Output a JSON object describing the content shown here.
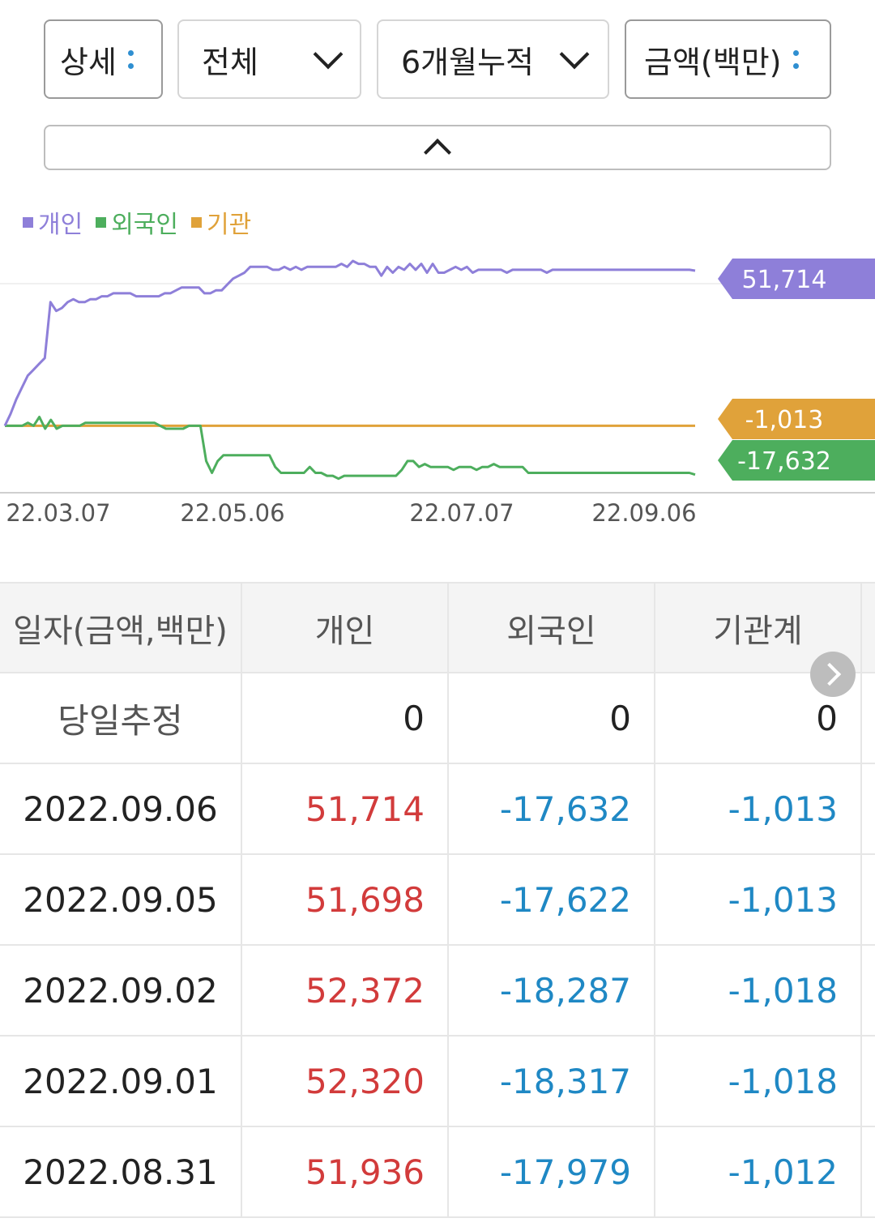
{
  "filters": {
    "detail": "상세",
    "scope": "전체",
    "period": "6개월누적",
    "unit": "금액(백만)"
  },
  "legend": [
    {
      "label": "개인",
      "color": "#8e7fd9"
    },
    {
      "label": "외국인",
      "color": "#4dae5d"
    },
    {
      "label": "기관",
      "color": "#e0a23a"
    }
  ],
  "chart_data": {
    "type": "line",
    "x_tick_labels": [
      "22.03.07",
      "22.05.06",
      "22.07.07",
      "22.09.06"
    ],
    "series": [
      {
        "name": "개인",
        "color": "#8e7fd9",
        "last_label": "51,714",
        "values": [
          -1,
          3,
          8,
          12,
          16,
          18,
          20,
          22,
          41,
          38,
          39,
          41,
          42,
          41,
          41,
          42,
          42,
          43,
          43,
          44,
          44,
          44,
          44,
          43,
          43,
          43,
          43,
          43,
          44,
          44,
          45,
          46,
          46,
          46,
          46,
          44,
          44,
          45,
          45,
          47,
          49,
          50,
          51,
          53,
          53,
          53,
          53,
          52,
          52,
          53,
          52,
          53,
          52,
          53,
          53,
          53,
          53,
          53,
          53,
          54,
          53,
          55,
          54,
          54,
          53,
          53,
          50,
          53,
          51,
          53,
          52,
          54,
          52,
          54,
          51,
          54,
          51,
          51,
          52,
          53,
          52,
          53,
          51,
          52,
          52,
          52,
          52,
          52,
          51,
          52,
          52,
          52,
          52,
          52,
          52,
          51,
          52,
          52,
          52,
          52,
          52,
          52,
          52,
          52,
          52,
          52,
          52,
          52,
          52,
          52,
          52,
          52,
          52,
          52,
          52,
          52,
          52,
          52,
          52,
          52,
          52,
          51.7
        ]
      },
      {
        "name": "외국인",
        "color": "#4dae5d",
        "last_label": "-17,632",
        "values": [
          -1,
          -1,
          -1,
          -1,
          0,
          -1,
          2,
          -2,
          1,
          -2,
          -1,
          -1,
          -1,
          -1,
          0,
          0,
          0,
          0,
          0,
          0,
          0,
          0,
          0,
          0,
          0,
          0,
          0,
          -1,
          -2,
          -2,
          -2,
          -2,
          -1,
          -1,
          -1,
          -13,
          -17,
          -13,
          -11,
          -11,
          -11,
          -11,
          -11,
          -11,
          -11,
          -11,
          -11,
          -15,
          -17,
          -17,
          -17,
          -17,
          -17,
          -15,
          -17,
          -17,
          -18,
          -18,
          -19,
          -18,
          -18,
          -18,
          -18,
          -18,
          -18,
          -18,
          -18,
          -18,
          -18,
          -16,
          -13,
          -13,
          -15,
          -14,
          -15,
          -15,
          -15,
          -15,
          -16,
          -15,
          -15,
          -15,
          -16,
          -15,
          -15,
          -14,
          -15,
          -15,
          -15,
          -15,
          -15,
          -17,
          -17,
          -17,
          -17,
          -17,
          -17,
          -17,
          -17,
          -17,
          -17,
          -17,
          -17,
          -17,
          -17,
          -17,
          -17,
          -17,
          -17,
          -17,
          -17,
          -17,
          -17,
          -17,
          -17,
          -17,
          -17,
          -17,
          -17,
          -17,
          -17.6
        ]
      },
      {
        "name": "기관",
        "color": "#e0a23a",
        "last_label": "-1,013",
        "values": [
          -1,
          -1,
          -1,
          -1,
          -1,
          -1,
          -1,
          -1,
          -1,
          -1,
          -1,
          -1,
          -1,
          -1,
          -1,
          -1,
          -1,
          -1,
          -1,
          -1,
          -1,
          -1,
          -1,
          -1,
          -1,
          -1,
          -1,
          -1,
          -1,
          -1,
          -1,
          -1,
          -1,
          -1,
          -1,
          -1,
          -1,
          -1,
          -1,
          -1,
          -1,
          -1,
          -1,
          -1,
          -1,
          -1,
          -1,
          -1,
          -1,
          -1,
          -1,
          -1,
          -1,
          -1,
          -1,
          -1,
          -1,
          -1,
          -1,
          -1,
          -1,
          -1,
          -1,
          -1,
          -1,
          -1,
          -1,
          -1,
          -1,
          -1,
          -1,
          -1,
          -1,
          -1,
          -1,
          -1,
          -1,
          -1,
          -1,
          -1,
          -1,
          -1,
          -1,
          -1,
          -1,
          -1,
          -1,
          -1,
          -1,
          -1,
          -1,
          -1,
          -1,
          -1,
          -1,
          -1,
          -1,
          -1,
          -1,
          -1,
          -1,
          -1,
          -1,
          -1,
          -1,
          -1,
          -1,
          -1,
          -1,
          -1,
          -1,
          -1,
          -1,
          -1,
          -1,
          -1,
          -1,
          -1,
          -1,
          -1.013
        ]
      }
    ]
  },
  "table": {
    "headers": [
      "일자(금액,백만)",
      "개인",
      "외국인",
      "기관계"
    ],
    "today_row": {
      "label": "당일추정",
      "individual": "0",
      "foreign": "0",
      "institution": "0"
    },
    "rows": [
      {
        "date": "2022.09.06",
        "individual": "51,714",
        "foreign": "-17,632",
        "institution": "-1,013"
      },
      {
        "date": "2022.09.05",
        "individual": "51,698",
        "foreign": "-17,622",
        "institution": "-1,013"
      },
      {
        "date": "2022.09.02",
        "individual": "52,372",
        "foreign": "-18,287",
        "institution": "-1,018"
      },
      {
        "date": "2022.09.01",
        "individual": "52,320",
        "foreign": "-18,317",
        "institution": "-1,018"
      },
      {
        "date": "2022.08.31",
        "individual": "51,936",
        "foreign": "-17,979",
        "institution": "-1,012"
      }
    ]
  }
}
